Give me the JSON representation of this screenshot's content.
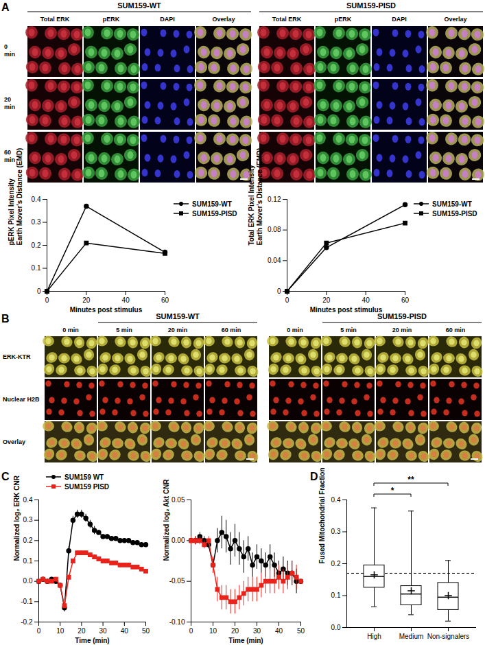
{
  "panel_labels": [
    "A",
    "B",
    "C",
    "D"
  ],
  "panel_A_images": {
    "groups": [
      "SUM159-WT",
      "SUM159-PISD"
    ],
    "columns": [
      "Total ERK",
      "pERK",
      "DAPI",
      "Overlay"
    ],
    "rows": [
      "0 min",
      "20 min",
      "60 min"
    ]
  },
  "panel_B_images": {
    "groups": [
      "SUM159-WT",
      "SUM159-PISD"
    ],
    "columns": [
      "0 min",
      "5 min",
      "20 min",
      "60 min"
    ],
    "rows": [
      "ERK-KTR",
      "Nuclear H2B",
      "Overlay"
    ]
  },
  "chart_data": [
    {
      "type": "line",
      "x_label": "Minutes post stimulus",
      "y_label": [
        "pERK Pixel Intensity",
        "Earth Mover's Distance (EMD)"
      ],
      "x": [
        0,
        20,
        60
      ],
      "xlim": [
        0,
        60
      ],
      "xticks": [
        0,
        20,
        40,
        60
      ],
      "ylim": [
        0,
        0.4
      ],
      "yticks": [
        0,
        0.1,
        0.2,
        0.3,
        0.4
      ],
      "legend": "right",
      "series": [
        {
          "name": "SUM159-WT",
          "color": "#000000",
          "marker": "circle",
          "values": [
            0,
            0.37,
            0.17
          ]
        },
        {
          "name": "SUM159-PISD",
          "color": "#000000",
          "marker": "square",
          "values": [
            0,
            0.21,
            0.165
          ]
        }
      ]
    },
    {
      "type": "line",
      "x_label": "Minutes post stimulus",
      "y_label": [
        "Total ERK Pixel Intensity",
        "Earth Mover's Distance (EMD)"
      ],
      "x": [
        0,
        20,
        60
      ],
      "xlim": [
        0,
        60
      ],
      "xticks": [
        0,
        20,
        40,
        60
      ],
      "ylim": [
        0,
        0.12
      ],
      "yticks": [
        0,
        0.04,
        0.08,
        0.12
      ],
      "legend": "right",
      "series": [
        {
          "name": "SUM159-WT",
          "color": "#000000",
          "marker": "circle",
          "values": [
            0,
            0.057,
            0.113
          ]
        },
        {
          "name": "SUM159-PISD",
          "color": "#000000",
          "marker": "square",
          "values": [
            0,
            0.063,
            0.089
          ]
        }
      ]
    },
    {
      "type": "line",
      "x_label": "Time (min)",
      "y_label": "Normalized log₂ ERK CNR",
      "x": [
        0,
        2,
        4,
        6,
        8,
        10,
        12,
        14,
        16,
        18,
        20,
        22,
        24,
        26,
        28,
        30,
        32,
        34,
        36,
        38,
        40,
        42,
        44,
        46,
        48,
        50
      ],
      "xlim": [
        0,
        50
      ],
      "xticks": [
        0,
        10,
        20,
        30,
        40,
        50
      ],
      "ylim": [
        -0.2,
        0.4
      ],
      "yticks": [
        -0.2,
        -0.1,
        {
          "value": 0,
          "label": "0.0"
        },
        0.1,
        0.2,
        0.3,
        0.4
      ],
      "legend": "top",
      "series": [
        {
          "name": "SUM159 WT",
          "color": "#000000",
          "marker": "circle",
          "values": [
            0,
            0.01,
            0,
            0.01,
            0,
            -0.02,
            -0.13,
            0.15,
            0.3,
            0.33,
            0.33,
            0.31,
            0.28,
            0.25,
            0.24,
            0.22,
            0.22,
            0.21,
            0.21,
            0.2,
            0.2,
            0.2,
            0.19,
            0.19,
            0.18,
            0.18
          ],
          "errors": [
            0.01,
            0.01,
            0.01,
            0.01,
            0.01,
            0.01,
            0.02,
            0.02,
            0.02,
            0.02,
            0.02,
            0.02,
            0.02,
            0.02,
            0.01,
            0.01,
            0.01,
            0.01,
            0.01,
            0.01,
            0.01,
            0.01,
            0.01,
            0.01,
            0.01,
            0.01
          ]
        },
        {
          "name": "SUM159 PISD",
          "color": "#e8231c",
          "marker": "square",
          "values": [
            0,
            0.01,
            0,
            0,
            0.01,
            -0.02,
            -0.12,
            0.02,
            0.1,
            0.14,
            0.14,
            0.14,
            0.13,
            0.12,
            0.11,
            0.1,
            0.1,
            0.09,
            0.09,
            0.08,
            0.08,
            0.08,
            0.07,
            0.07,
            0.06,
            0.05
          ],
          "errors": [
            0.01,
            0.01,
            0.01,
            0.01,
            0.01,
            0.01,
            0.01,
            0.01,
            0.01,
            0.01,
            0.01,
            0.01,
            0.01,
            0.01,
            0.01,
            0.01,
            0.01,
            0.01,
            0.01,
            0.01,
            0.01,
            0.01,
            0.01,
            0.01,
            0.01,
            0.01
          ]
        }
      ]
    },
    {
      "type": "line",
      "x_label": "Time (min)",
      "y_label": "Normalized log₂ Akt CNR",
      "x": [
        0,
        2,
        4,
        6,
        8,
        10,
        12,
        14,
        16,
        18,
        20,
        22,
        24,
        26,
        28,
        30,
        32,
        34,
        36,
        38,
        40,
        42,
        44,
        46,
        48,
        50
      ],
      "xlim": [
        0,
        50
      ],
      "xticks": [
        0,
        10,
        20,
        30,
        40,
        50
      ],
      "ylim": [
        -0.1,
        0.05
      ],
      "yticks": [
        {
          "value": -0.1,
          "label": "-0.10"
        },
        -0.05,
        {
          "value": 0,
          "label": "0.00"
        },
        0.05
      ],
      "series": [
        {
          "name": "SUM159 WT",
          "color": "#000000",
          "marker": "circle",
          "values": [
            0,
            0,
            0.005,
            0,
            -0.005,
            -0.03,
            0,
            0.01,
            0.005,
            -0.01,
            0,
            -0.01,
            -0.02,
            -0.01,
            -0.03,
            -0.02,
            -0.025,
            -0.03,
            -0.02,
            -0.03,
            -0.04,
            -0.035,
            -0.04,
            -0.04,
            -0.05,
            -0.05
          ],
          "errors": [
            0.005,
            0.005,
            0.005,
            0.005,
            0.005,
            0.01,
            0.015,
            0.02,
            0.02,
            0.02,
            0.02,
            0.02,
            0.02,
            0.015,
            0.015,
            0.015,
            0.015,
            0.015,
            0.015,
            0.015,
            0.015,
            0.015,
            0.015,
            0.015,
            0.015,
            0.015
          ]
        },
        {
          "name": "SUM159 PISD",
          "color": "#e8231c",
          "marker": "square",
          "values": [
            0,
            0,
            0,
            -0.005,
            0,
            -0.03,
            -0.06,
            -0.07,
            -0.07,
            -0.075,
            -0.075,
            -0.07,
            -0.065,
            -0.06,
            -0.06,
            -0.06,
            -0.055,
            -0.05,
            -0.05,
            -0.05,
            -0.045,
            -0.05,
            -0.045,
            -0.04,
            -0.045,
            -0.05
          ],
          "errors": [
            0.005,
            0.005,
            0.005,
            0.005,
            0.005,
            0.01,
            0.015,
            0.015,
            0.015,
            0.015,
            0.015,
            0.015,
            0.015,
            0.015,
            0.015,
            0.015,
            0.015,
            0.015,
            0.015,
            0.015,
            0.015,
            0.015,
            0.015,
            0.015,
            0.015,
            0.015
          ]
        }
      ]
    },
    {
      "type": "box",
      "y_label": "Fused Mitochondrial Fraction",
      "categories": [
        "High",
        "Medium",
        "Non-signalers"
      ],
      "ylim": [
        0,
        0.4
      ],
      "yticks": [
        {
          "value": 0,
          "label": "0.0"
        },
        0.1,
        0.2,
        0.3,
        0.4
      ],
      "marker": "plus",
      "min": [
        0.065,
        0.04,
        0.02
      ],
      "q1": [
        0.125,
        0.07,
        0.055
      ],
      "median": [
        0.16,
        0.105,
        0.095
      ],
      "q3": [
        0.195,
        0.13,
        0.14
      ],
      "max": [
        0.375,
        0.365,
        0.21
      ],
      "mean": [
        0.165,
        0.115,
        0.1
      ],
      "reference_line": 0.17,
      "annotations": [
        {
          "from": "High",
          "to": "Medium",
          "text": "*"
        },
        {
          "from": "High",
          "to": "Non-signalers",
          "text": "**"
        }
      ]
    }
  ]
}
